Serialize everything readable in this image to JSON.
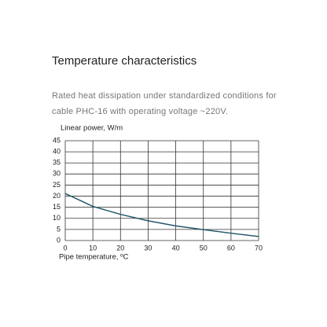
{
  "chart_data": {
    "type": "line",
    "title": "Temperature characteristics",
    "subtitle": "Rated heat dissipation under standardized conditions for cable PHC-16 with operating voltage ~220V.",
    "ylabel": "Linear power, W/m",
    "xlabel": "Pipe temperature, ºC",
    "x": [
      0,
      10,
      20,
      30,
      40,
      50,
      60,
      70
    ],
    "series": [
      {
        "name": "PHC-16",
        "color": "#24586b",
        "values": [
          21.2,
          15.4,
          11.8,
          8.9,
          6.6,
          4.9,
          3.3,
          1.8
        ]
      }
    ],
    "xlim": [
      0,
      70
    ],
    "xticks": [
      0,
      10,
      20,
      30,
      40,
      50,
      60,
      70
    ],
    "ylim": [
      0,
      45
    ],
    "yticks": [
      0,
      5,
      10,
      15,
      20,
      25,
      30,
      35,
      40,
      45
    ],
    "grid": true
  }
}
